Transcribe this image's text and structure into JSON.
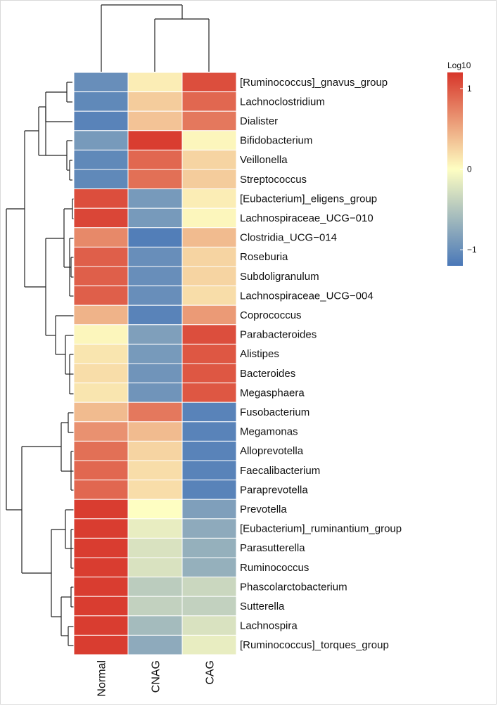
{
  "chart_data": {
    "type": "heatmap",
    "title": "",
    "columns": [
      "Normal",
      "CNAG",
      "CAG"
    ],
    "rows": [
      "[Ruminococcus]_gnavus_group",
      "Lachnoclostridium",
      "Dialister",
      "Bifidobacterium",
      "Veillonella",
      "Streptococcus",
      "[Eubacterium]_eligens_group",
      "Lachnospiraceae_UCG−010",
      "Clostridia_UCG−014",
      "Roseburia",
      "Subdoligranulum",
      "Lachnospiraceae_UCG−004",
      "Coprococcus",
      "Parabacteroides",
      "Alistipes",
      "Bacteroides",
      "Megasphaera",
      "Fusobacterium",
      "Megamonas",
      "Alloprevotella",
      "Faecalibacterium",
      "Paraprevotella",
      "Prevotella",
      "[Eubacterium]_ruminantium_group",
      "Parasutterella",
      "Ruminococcus",
      "Phascolarctobacterium",
      "Sutterella",
      "Lachnospira",
      "[Ruminococcus]_torques_group"
    ],
    "values": [
      [
        -1.0,
        0.1,
        1.05
      ],
      [
        -1.05,
        0.3,
        0.9
      ],
      [
        -1.1,
        0.35,
        0.8
      ],
      [
        -0.9,
        1.15,
        0.05
      ],
      [
        -1.05,
        0.9,
        0.25
      ],
      [
        -1.05,
        0.85,
        0.3
      ],
      [
        1.05,
        -0.9,
        0.1
      ],
      [
        1.1,
        -0.9,
        0.05
      ],
      [
        0.7,
        -1.15,
        0.4
      ],
      [
        0.95,
        -1.0,
        0.25
      ],
      [
        0.95,
        -1.0,
        0.25
      ],
      [
        0.95,
        -1.0,
        0.2
      ],
      [
        0.45,
        -1.1,
        0.6
      ],
      [
        0.05,
        -0.85,
        1.05
      ],
      [
        0.15,
        -0.9,
        1.0
      ],
      [
        0.2,
        -0.95,
        1.0
      ],
      [
        0.15,
        -0.95,
        1.0
      ],
      [
        0.4,
        0.8,
        -1.1
      ],
      [
        0.65,
        0.4,
        -1.1
      ],
      [
        0.85,
        0.25,
        -1.1
      ],
      [
        0.9,
        0.2,
        -1.1
      ],
      [
        0.9,
        0.2,
        -1.1
      ],
      [
        1.15,
        0.0,
        -0.85
      ],
      [
        1.15,
        -0.15,
        -0.75
      ],
      [
        1.15,
        -0.25,
        -0.7
      ],
      [
        1.15,
        -0.25,
        -0.7
      ],
      [
        1.15,
        -0.45,
        -0.35
      ],
      [
        1.15,
        -0.4,
        -0.4
      ],
      [
        1.15,
        -0.6,
        -0.25
      ],
      [
        1.15,
        -0.75,
        -0.15
      ]
    ],
    "color_scale": {
      "title": "Log10",
      "ticks": [
        "−1",
        "0",
        "1"
      ],
      "tick_values": [
        -1,
        0,
        1
      ],
      "range": [
        -1.2,
        1.2
      ],
      "colors": [
        "#4a78b8",
        "#fefec2",
        "#d7352a"
      ]
    },
    "row_dendrogram": true,
    "column_dendrogram": true,
    "legend_position": "top-right"
  }
}
